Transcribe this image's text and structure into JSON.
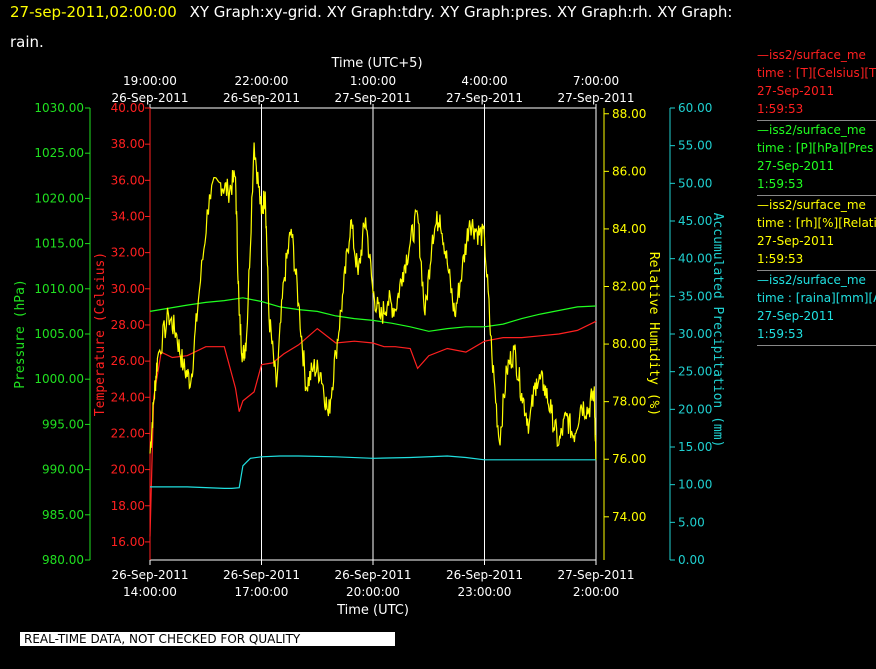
{
  "header": {
    "timestamp": "27-sep-2011,02:00:00",
    "line1_rest": "XY Graph:xy-grid.  XY Graph:tdry.  XY Graph:pres.  XY Graph:rh.  XY Graph:",
    "line2": "rain."
  },
  "legend": [
    {
      "line": "—iss2/surface_me",
      "units": "time : [T][Celsius][T",
      "date": "27-Sep-2011",
      "time": "1:59:53",
      "color": "#ff2020"
    },
    {
      "line": "—iss2/surface_me",
      "units": "time : [P][hPa][Pres",
      "date": "27-Sep-2011",
      "time": "1:59:53",
      "color": "#20ff20"
    },
    {
      "line": "—iss2/surface_me",
      "units": "time : [rh][%][Relati",
      "date": "27-Sep-2011",
      "time": "1:59:53",
      "color": "#ffff00"
    },
    {
      "line": "—iss2/surface_me",
      "units": "time : [raina][mm][A",
      "date": "27-Sep-2011",
      "time": "1:59:53",
      "color": "#20e0e0"
    }
  ],
  "quality_note": "REAL-TIME DATA, NOT CHECKED FOR QUALITY",
  "chart_data": {
    "type": "line",
    "grid": true,
    "x_axis_bottom": {
      "label": "Time (UTC)",
      "range_hours": [
        0,
        12
      ],
      "ticks": [
        {
          "h": 0,
          "date": "26-Sep-2011",
          "time": "14:00:00"
        },
        {
          "h": 3,
          "date": "26-Sep-2011",
          "time": "17:00:00"
        },
        {
          "h": 6,
          "date": "26-Sep-2011",
          "time": "20:00:00"
        },
        {
          "h": 9,
          "date": "26-Sep-2011",
          "time": "23:00:00"
        },
        {
          "h": 12,
          "date": "27-Sep-2011",
          "time": "2:00:00"
        }
      ]
    },
    "x_axis_top": {
      "label": "Time (UTC+5)",
      "ticks": [
        {
          "h": 0,
          "time": "19:00:00",
          "date": "26-Sep-2011"
        },
        {
          "h": 3,
          "time": "22:00:00",
          "date": "26-Sep-2011"
        },
        {
          "h": 6,
          "time": "1:00:00",
          "date": "27-Sep-2011"
        },
        {
          "h": 9,
          "time": "4:00:00",
          "date": "27-Sep-2011"
        },
        {
          "h": 12,
          "time": "7:00:00",
          "date": "27-Sep-2011"
        }
      ]
    },
    "y_axes": [
      {
        "id": "pres",
        "label": "Pressure (hPa)",
        "color": "#20e020",
        "ylim": [
          980,
          1030
        ],
        "ticks": [
          "980.00",
          "985.00",
          "990.00",
          "995.00",
          "1000.00",
          "1005.00",
          "1010.00",
          "1015.00",
          "1020.00",
          "1025.00",
          "1030.00"
        ]
      },
      {
        "id": "temp",
        "label": "Temperature (Celsius)",
        "color": "#ff2020",
        "ylim": [
          15,
          40
        ],
        "ticks": [
          "16.00",
          "18.00",
          "20.00",
          "22.00",
          "24.00",
          "26.00",
          "28.00",
          "30.00",
          "32.00",
          "34.00",
          "36.00",
          "38.00",
          "40.00"
        ]
      },
      {
        "id": "rh",
        "label": "Relative Humidity (%)",
        "color": "#ffff00",
        "ylim": [
          72.5,
          88.2
        ],
        "ticks": [
          "74.00",
          "76.00",
          "78.00",
          "80.00",
          "82.00",
          "84.00",
          "86.00",
          "88.00"
        ]
      },
      {
        "id": "rain",
        "label": "Accumulated Precipitation (mm)",
        "color": "#20d0d0",
        "ylim": [
          0,
          60
        ],
        "ticks": [
          "0.00",
          "5.00",
          "10.00",
          "15.00",
          "20.00",
          "25.00",
          "30.00",
          "35.00",
          "40.00",
          "45.00",
          "50.00",
          "55.00",
          "60.00"
        ]
      }
    ],
    "series": [
      {
        "axis": "pres",
        "color": "#20ff20",
        "x": [
          0,
          1,
          1.5,
          2,
          2.5,
          3,
          3.5,
          4,
          4.5,
          5,
          5.5,
          6,
          6.5,
          7,
          7.5,
          8,
          8.5,
          9,
          9.5,
          10,
          10.5,
          11,
          11.5,
          12
        ],
        "y": [
          1007.5,
          1008.2,
          1008.5,
          1008.7,
          1009.0,
          1008.6,
          1008.0,
          1007.7,
          1007.5,
          1007.0,
          1006.7,
          1006.5,
          1006.2,
          1005.8,
          1005.3,
          1005.6,
          1005.8,
          1005.8,
          1006.1,
          1006.7,
          1007.2,
          1007.6,
          1008.0,
          1008.1
        ]
      },
      {
        "axis": "temp",
        "color": "#ff2020",
        "x": [
          0,
          0.1,
          0.3,
          0.6,
          1.0,
          1.5,
          2.0,
          2.3,
          2.4,
          2.5,
          2.8,
          3.0,
          3.3,
          3.6,
          4.0,
          4.5,
          5.0,
          5.5,
          6.0,
          6.3,
          6.6,
          7.0,
          7.2,
          7.5,
          8.0,
          8.5,
          9.0,
          9.5,
          10.0,
          10.5,
          11.0,
          11.5,
          12.0
        ],
        "y": [
          16.3,
          24.0,
          26.5,
          26.2,
          26.3,
          26.8,
          26.8,
          24.5,
          23.2,
          23.8,
          24.3,
          25.8,
          25.9,
          26.4,
          26.9,
          27.8,
          27.0,
          27.1,
          27.0,
          26.8,
          26.8,
          26.7,
          25.6,
          26.3,
          26.7,
          26.5,
          27.1,
          27.3,
          27.3,
          27.4,
          27.5,
          27.7,
          28.2
        ]
      },
      {
        "axis": "rh",
        "color": "#ffff00",
        "x": [
          0,
          0.1,
          0.2,
          0.5,
          0.7,
          0.9,
          1.1,
          1.3,
          1.6,
          1.9,
          2.1,
          2.3,
          2.4,
          2.5,
          2.6,
          2.8,
          3.0,
          3.1,
          3.2,
          3.4,
          3.6,
          3.8,
          4.0,
          4.2,
          4.4,
          4.6,
          4.8,
          5.0,
          5.2,
          5.4,
          5.6,
          5.8,
          6.0,
          6.2,
          6.4,
          6.6,
          6.8,
          7.0,
          7.2,
          7.4,
          7.6,
          7.8,
          8.0,
          8.2,
          8.4,
          8.6,
          8.8,
          9.0,
          9.2,
          9.4,
          9.6,
          9.8,
          10.0,
          10.2,
          10.4,
          10.6,
          10.8,
          11.0,
          11.2,
          11.4,
          11.6,
          11.8,
          11.95,
          12.0
        ],
        "y": [
          76.2,
          78.0,
          79.5,
          81.0,
          80.4,
          79.2,
          78.7,
          81.5,
          85.2,
          85.6,
          85.3,
          85.8,
          81.0,
          79.5,
          80.3,
          87.0,
          84.5,
          85.3,
          81.0,
          78.5,
          82.2,
          84.0,
          81.4,
          78.5,
          79.2,
          79.0,
          77.5,
          79.7,
          81.8,
          84.3,
          82.4,
          84.4,
          81.8,
          80.9,
          81.5,
          81.2,
          82.5,
          83.5,
          84.5,
          81.0,
          83.8,
          84.5,
          82.8,
          81.0,
          82.6,
          84.3,
          83.9,
          83.7,
          79.6,
          76.6,
          79.1,
          79.8,
          78.3,
          77.2,
          78.8,
          78.6,
          77.6,
          76.5,
          77.5,
          76.8,
          77.9,
          77.7,
          78.4,
          76.0
        ]
      },
      {
        "axis": "rain",
        "color": "#20e0e0",
        "x": [
          0,
          1.0,
          2.0,
          2.2,
          2.4,
          2.5,
          2.6,
          2.7,
          3.0,
          3.5,
          4.0,
          5.0,
          6.0,
          7.0,
          8.0,
          8.5,
          9.0,
          10.0,
          11.0,
          12.0
        ],
        "y": [
          9.7,
          9.7,
          9.5,
          9.5,
          9.6,
          12.5,
          13.0,
          13.5,
          13.7,
          13.8,
          13.8,
          13.7,
          13.5,
          13.6,
          13.8,
          13.6,
          13.3,
          13.3,
          13.3,
          13.3
        ]
      }
    ]
  }
}
